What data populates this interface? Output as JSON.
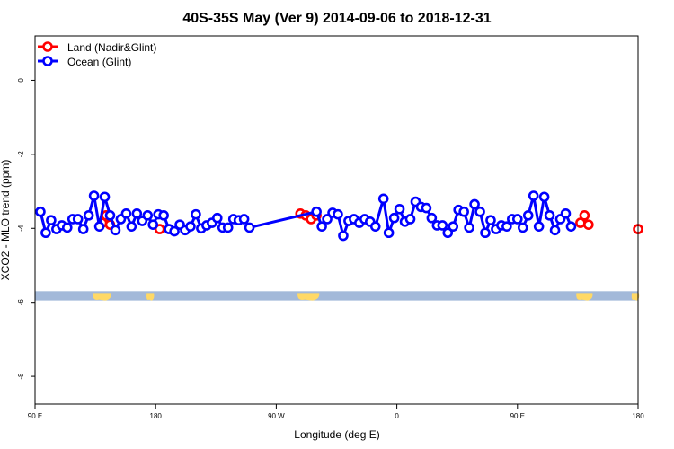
{
  "chart_data": {
    "type": "line",
    "title": "40S-35S May (Ver 9)   2014-09-06 to 2018-12-31",
    "xlabel": "Longitude (deg E)",
    "ylabel": "XCO2 - MLO trend (ppm)",
    "xlim": [
      90,
      540
    ],
    "ylim": [
      -8.75,
      1.2
    ],
    "x_ticks": [
      {
        "value": 90,
        "label": "90 E"
      },
      {
        "value": 180,
        "label": "180"
      },
      {
        "value": 270,
        "label": "90 W"
      },
      {
        "value": 360,
        "label": "0"
      },
      {
        "value": 450,
        "label": "90 E"
      },
      {
        "value": 540,
        "label": "180"
      }
    ],
    "y_ticks": [
      {
        "value": 0,
        "label": "0"
      },
      {
        "value": -2,
        "label": "-2"
      },
      {
        "value": -4,
        "label": "-4"
      },
      {
        "value": -6,
        "label": "-6"
      },
      {
        "value": -8,
        "label": "-8"
      }
    ],
    "legend": {
      "position": "top-left"
    },
    "series": [
      {
        "name": "Land (Nadir&Glint)",
        "color": "#ff0000",
        "segments": [
          [
            [
              140,
              -3.85
            ],
            [
              143,
              -3.65
            ],
            [
              146,
              -3.9
            ]
          ],
          [
            [
              183,
              -4.02
            ]
          ],
          [
            [
              288,
              -3.6
            ],
            [
              292,
              -3.65
            ],
            [
              296,
              -3.75
            ],
            [
              300,
              -3.65
            ]
          ],
          [
            [
              497,
              -3.85
            ],
            [
              500,
              -3.65
            ],
            [
              503,
              -3.9
            ]
          ],
          [
            [
              540,
              -4.02
            ]
          ]
        ]
      },
      {
        "name": "Ocean (Glint)",
        "color": "#0000ff",
        "points": [
          [
            94,
            -3.55
          ],
          [
            98,
            -4.12
          ],
          [
            102,
            -3.78
          ],
          [
            106,
            -4.02
          ],
          [
            110,
            -3.92
          ],
          [
            114,
            -3.98
          ],
          [
            118,
            -3.75
          ],
          [
            122,
            -3.75
          ],
          [
            126,
            -4.02
          ],
          [
            130,
            -3.65
          ],
          [
            134,
            -3.12
          ],
          [
            138,
            -3.95
          ],
          [
            142,
            -3.15
          ],
          [
            146,
            -3.65
          ],
          [
            150,
            -4.05
          ],
          [
            154,
            -3.75
          ],
          [
            158,
            -3.6
          ],
          [
            162,
            -3.95
          ],
          [
            166,
            -3.6
          ],
          [
            170,
            -3.8
          ],
          [
            174,
            -3.65
          ],
          [
            178,
            -3.9
          ],
          [
            182,
            -3.62
          ],
          [
            186,
            -3.65
          ],
          [
            190,
            -4.02
          ],
          [
            194,
            -4.08
          ],
          [
            198,
            -3.9
          ],
          [
            202,
            -4.05
          ],
          [
            206,
            -3.95
          ],
          [
            210,
            -3.62
          ],
          [
            214,
            -4.0
          ],
          [
            218,
            -3.92
          ],
          [
            222,
            -3.85
          ],
          [
            226,
            -3.72
          ],
          [
            230,
            -3.98
          ],
          [
            234,
            -3.98
          ],
          [
            238,
            -3.75
          ],
          [
            242,
            -3.78
          ],
          [
            246,
            -3.75
          ],
          [
            250,
            -3.98
          ],
          [
            300,
            -3.55
          ],
          [
            304,
            -3.95
          ],
          [
            308,
            -3.75
          ],
          [
            312,
            -3.58
          ],
          [
            316,
            -3.62
          ],
          [
            320,
            -4.2
          ],
          [
            324,
            -3.8
          ],
          [
            328,
            -3.75
          ],
          [
            332,
            -3.85
          ],
          [
            336,
            -3.75
          ],
          [
            340,
            -3.82
          ],
          [
            344,
            -3.95
          ],
          [
            350,
            -3.2
          ],
          [
            354,
            -4.12
          ],
          [
            358,
            -3.72
          ],
          [
            362,
            -3.48
          ],
          [
            366,
            -3.82
          ],
          [
            370,
            -3.75
          ],
          [
            374,
            -3.28
          ],
          [
            378,
            -3.42
          ],
          [
            382,
            -3.45
          ],
          [
            386,
            -3.72
          ],
          [
            390,
            -3.92
          ],
          [
            394,
            -3.92
          ],
          [
            398,
            -4.12
          ],
          [
            402,
            -3.95
          ],
          [
            406,
            -3.5
          ],
          [
            410,
            -3.55
          ],
          [
            414,
            -3.98
          ],
          [
            418,
            -3.35
          ],
          [
            422,
            -3.55
          ],
          [
            426,
            -4.12
          ],
          [
            430,
            -3.78
          ],
          [
            434,
            -4.02
          ],
          [
            438,
            -3.92
          ],
          [
            442,
            -3.95
          ],
          [
            446,
            -3.75
          ],
          [
            450,
            -3.75
          ],
          [
            454,
            -3.98
          ],
          [
            458,
            -3.65
          ],
          [
            462,
            -3.12
          ],
          [
            466,
            -3.95
          ],
          [
            470,
            -3.15
          ],
          [
            474,
            -3.65
          ],
          [
            478,
            -4.05
          ],
          [
            482,
            -3.75
          ],
          [
            486,
            -3.6
          ],
          [
            490,
            -3.95
          ]
        ]
      }
    ],
    "land_band": {
      "y_range": [
        -5.95,
        -5.7
      ],
      "ocean_color": "#a3b9d9",
      "land_color": "#ffd966"
    }
  }
}
